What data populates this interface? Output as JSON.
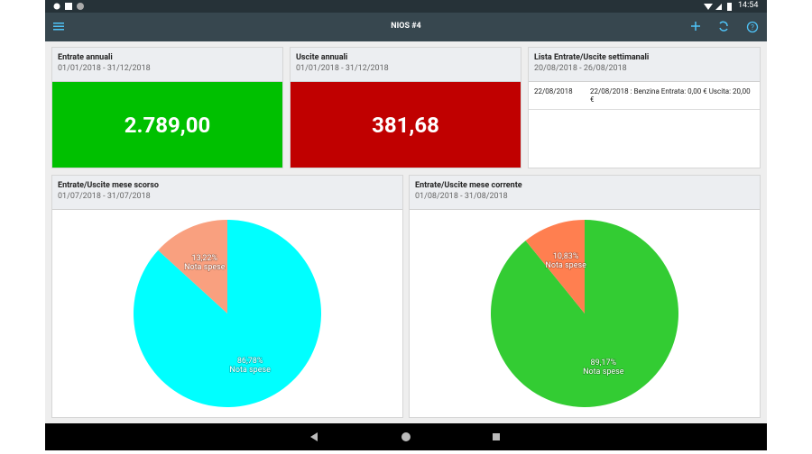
{
  "status_bar": {
    "time": "14:54"
  },
  "app_bar": {
    "title": "NIOS #4"
  },
  "cards": [
    {
      "title": "Entrate annuali",
      "subtitle": "01/01/2018 - 31/12/2018",
      "value": "2.789,00"
    },
    {
      "title": "Uscite annuali",
      "subtitle": "01/01/2018 - 31/12/2018",
      "value": "381,68"
    }
  ],
  "weekly_list": {
    "title": "Lista Entrate/Uscite settimanali",
    "subtitle": "20/08/2018 - 26/08/2018",
    "rows": [
      [
        "22/08/2018",
        "22/08/2018 : Benzina Entrata: 0,00 € Uscita: 20,00 €"
      ]
    ]
  },
  "chart_data": [
    {
      "type": "pie",
      "title": "Entrate/Uscite mese scorso",
      "subtitle": "01/07/2018 - 31/07/2018",
      "categories": [
        "Nota spese",
        "Nota spese"
      ],
      "values": [
        86.78,
        13.22
      ],
      "value_labels": [
        "86,78%",
        "13,22%"
      ],
      "colors": [
        "#00ffff",
        "#f9a07f"
      ]
    },
    {
      "type": "pie",
      "title": "Entrate/Uscite mese corrente",
      "subtitle": "01/08/2018 - 31/08/2018",
      "categories": [
        "Nota spese",
        "Nota spese"
      ],
      "values": [
        89.17,
        10.83
      ],
      "value_labels": [
        "89,17%",
        "10,83%"
      ],
      "colors": [
        "#33cc33",
        "#ff7f50"
      ]
    }
  ]
}
